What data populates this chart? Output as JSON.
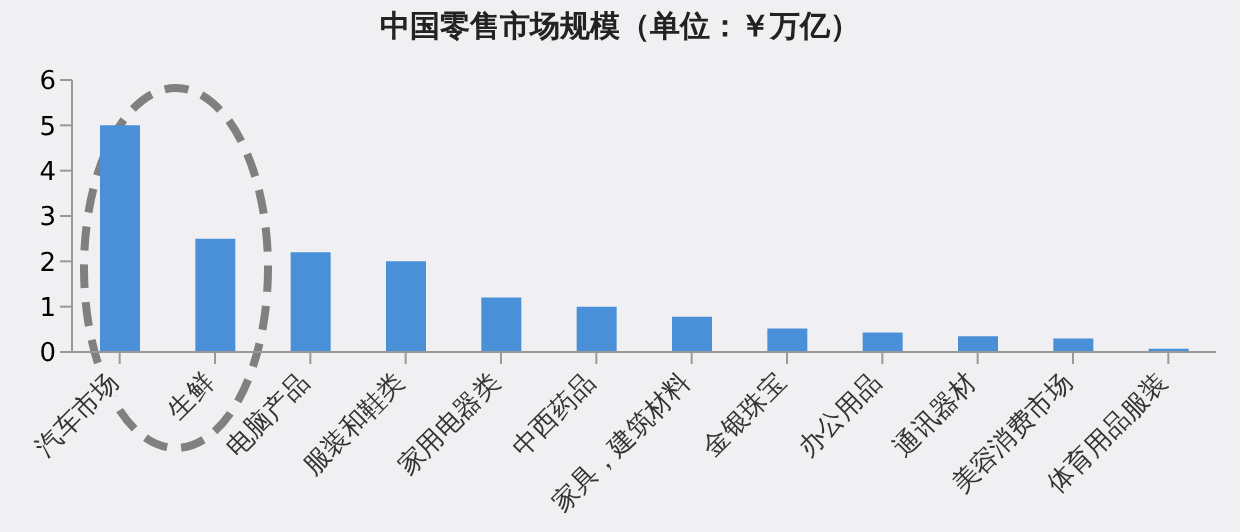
{
  "chart_data": {
    "type": "bar",
    "title": "中国零售市场规模（单位：￥万亿）",
    "categories": [
      "汽车市场",
      "生鲜",
      "电脑产品",
      "服装和鞋类",
      "家用电器类",
      "中西药品",
      "家具，建筑材料",
      "金银珠宝",
      "办公用品",
      "通讯器材",
      "美容消费市场",
      "体育用品服装"
    ],
    "values": [
      5,
      2.5,
      2.2,
      2,
      1.2,
      1,
      0.78,
      0.52,
      0.43,
      0.35,
      0.3,
      0.07
    ],
    "color": "#4a90d9",
    "ylim": [
      0,
      6
    ],
    "yticks": [
      0,
      1,
      2,
      3,
      4,
      5,
      6
    ],
    "grid": false
  }
}
